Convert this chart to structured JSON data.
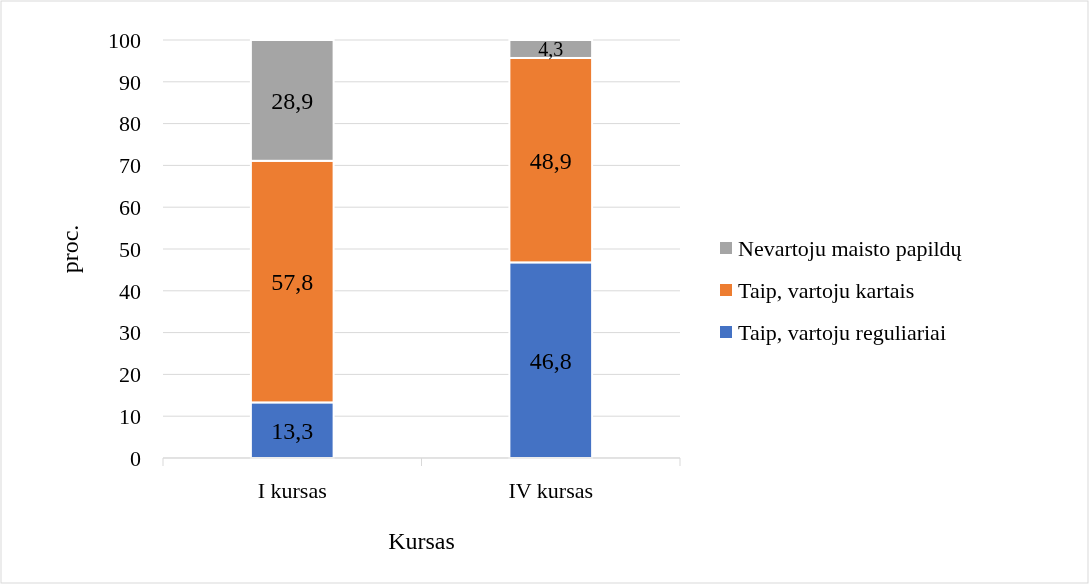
{
  "chart_data": {
    "type": "bar",
    "stacked": true,
    "xlabel": "Kursas",
    "ylabel": "proc.",
    "categories": [
      "I kursas",
      "IV kursas"
    ],
    "series": [
      {
        "name": "Taip, vartoju reguliariai",
        "color": "#4472c4",
        "values": [
          13.3,
          46.8
        ],
        "value_labels": [
          "13,3",
          "46,8"
        ]
      },
      {
        "name": "Taip, vartoju kartais",
        "color": "#ed7d31",
        "values": [
          57.8,
          48.9
        ],
        "value_labels": [
          "57,8",
          "48,9"
        ]
      },
      {
        "name": "Nevartoju maisto papildų",
        "color": "#a5a5a5",
        "values": [
          28.9,
          4.3
        ],
        "value_labels": [
          "28,9",
          "4,3"
        ]
      }
    ],
    "ylim": [
      0,
      100
    ],
    "yticks": [
      0,
      10,
      20,
      30,
      40,
      50,
      60,
      70,
      80,
      90,
      100
    ],
    "grid": "y",
    "legend": "right"
  }
}
